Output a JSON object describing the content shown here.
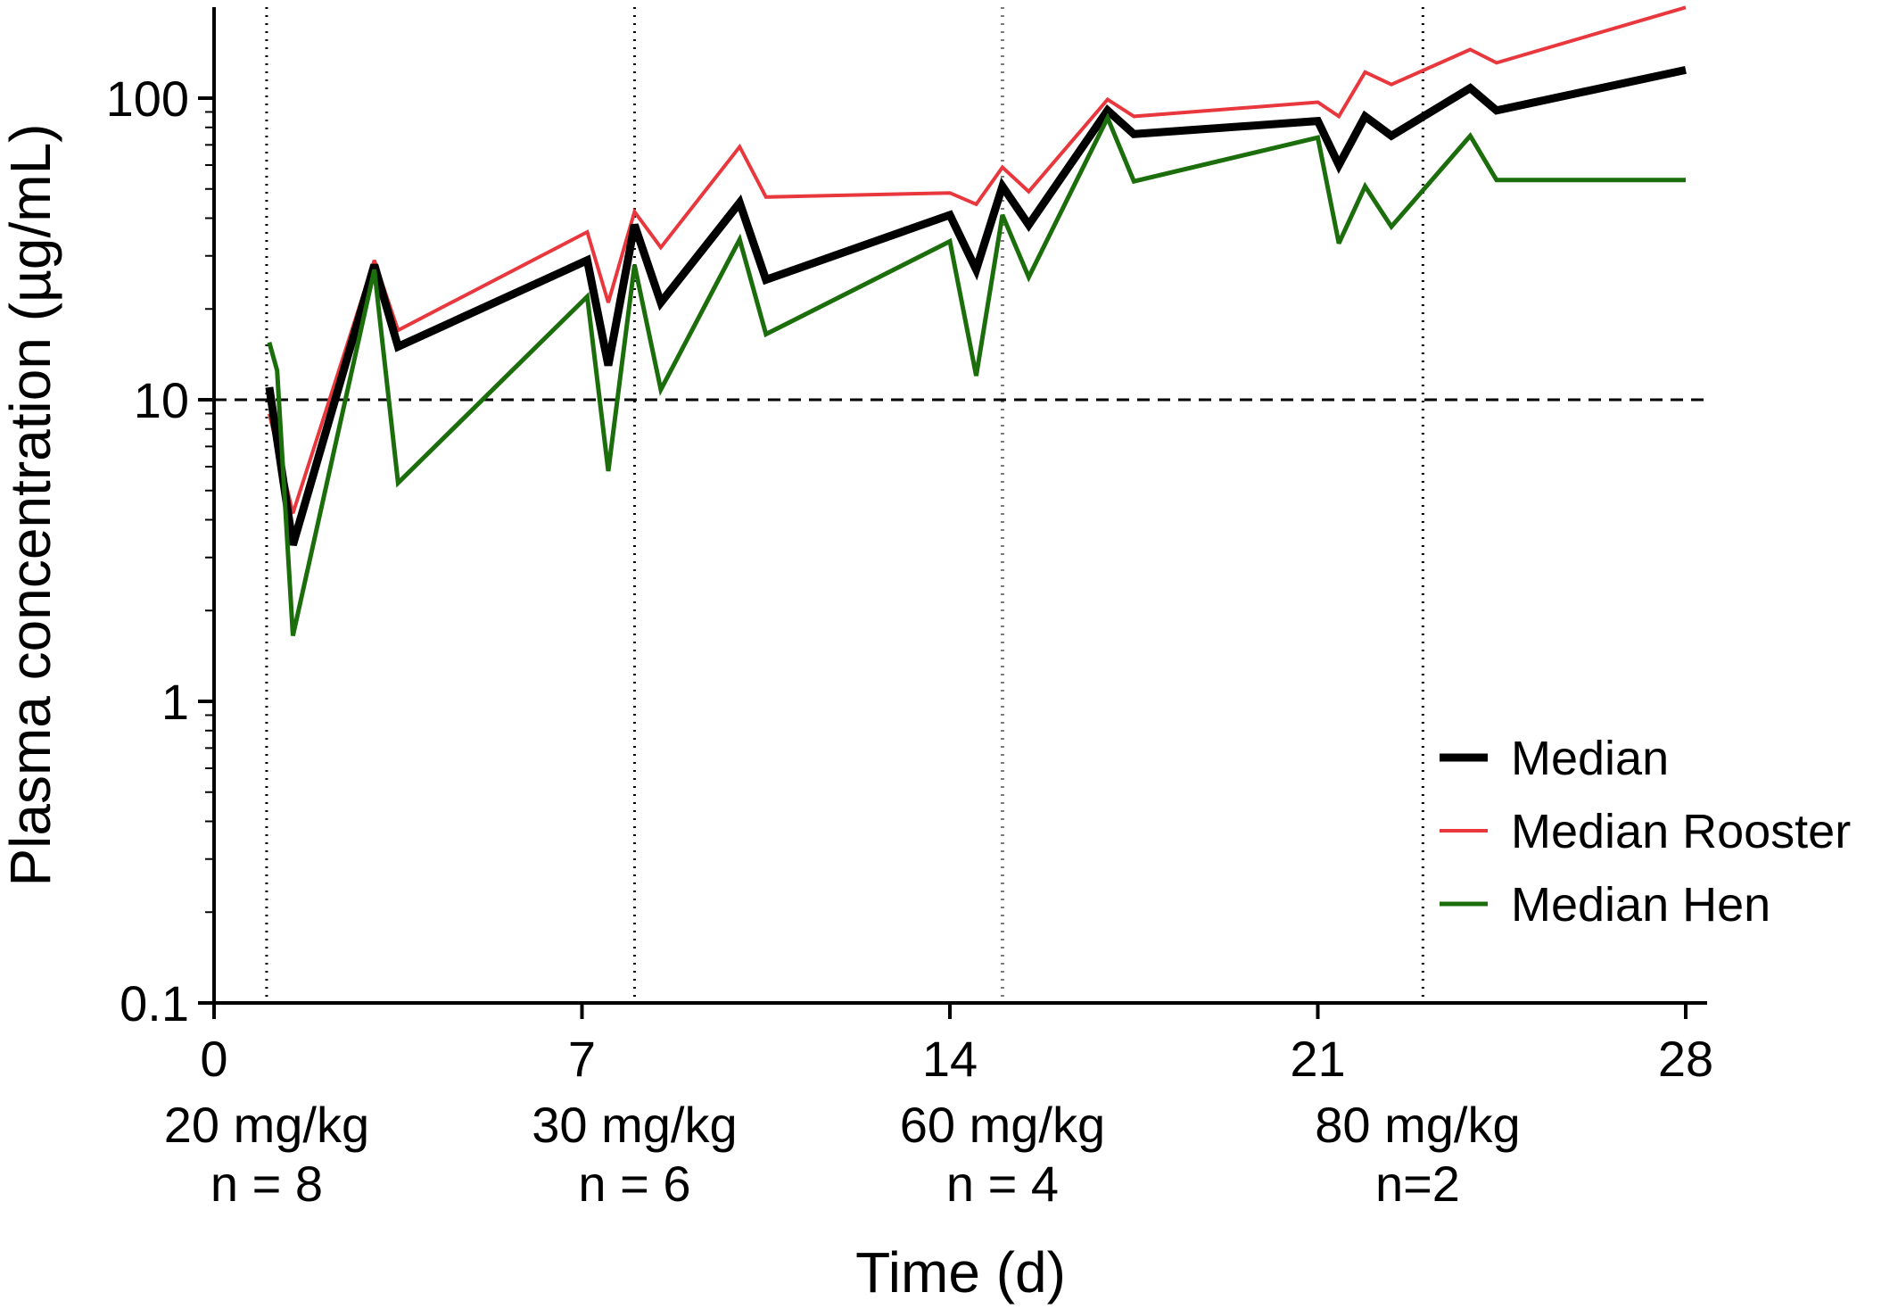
{
  "chart_data": {
    "type": "line",
    "title": "",
    "xlabel": "Time (d)",
    "ylabel": "Plasma concentration (µg/mL)",
    "xlim": [
      0,
      28
    ],
    "ylim": [
      0.1,
      200
    ],
    "yscale": "log",
    "x_ticks": [
      0,
      7,
      14,
      21,
      28
    ],
    "y_ticks": [
      {
        "value": 0.1,
        "label": "0.1"
      },
      {
        "value": 1,
        "label": "1"
      },
      {
        "value": 10,
        "label": "10"
      },
      {
        "value": 100,
        "label": "100"
      }
    ],
    "grid": false,
    "legend_position": "lower-right",
    "reference_line": {
      "y": 10,
      "style": "dashed"
    },
    "dose_markers": [
      1,
      8,
      15,
      23
    ],
    "dose_groups": [
      {
        "x": 1,
        "dose": "20 mg/kg",
        "n": "n = 8"
      },
      {
        "x": 8,
        "dose": "30 mg/kg",
        "n": "n = 6"
      },
      {
        "x": 15,
        "dose": "60 mg/kg",
        "n": "n = 4"
      },
      {
        "x": 22.9,
        "dose": "80 mg/kg",
        "n": "n=2"
      }
    ],
    "series": [
      {
        "name": "Median Rooster",
        "color": "#e8383d",
        "width": 4,
        "x": [
          1.05,
          1.5,
          3.05,
          3.5,
          7.1,
          7.5,
          8.0,
          8.5,
          10.0,
          10.5,
          14.0,
          14.5,
          15.0,
          15.5,
          17.0,
          17.5,
          21.0,
          21.4,
          21.9,
          22.4,
          23.9,
          24.4,
          28.0
        ],
        "y": [
          9.0,
          4.2,
          29.0,
          17.0,
          36.0,
          21.0,
          42.0,
          32.0,
          69.0,
          47.0,
          48.5,
          44.5,
          59.0,
          49.0,
          99.0,
          87.0,
          97.0,
          87.0,
          122.0,
          111.0,
          145.0,
          131.0,
          200.0
        ]
      },
      {
        "name": "Median",
        "color": "#000000",
        "width": 9,
        "x": [
          1.05,
          1.5,
          3.05,
          3.5,
          7.1,
          7.5,
          8.0,
          8.5,
          10.0,
          10.5,
          14.0,
          14.5,
          15.0,
          15.5,
          17.0,
          17.5,
          21.0,
          21.4,
          21.9,
          22.4,
          23.9,
          24.4,
          28.0
        ],
        "y": [
          11.0,
          3.3,
          28.0,
          15.0,
          29.0,
          13.0,
          38.0,
          21.0,
          45.0,
          25.0,
          41.0,
          27.0,
          51.0,
          38.0,
          91.0,
          76.0,
          84.0,
          60.0,
          87.0,
          75.0,
          108.0,
          91.0,
          124.0
        ]
      },
      {
        "name": "Median Hen",
        "color": "#1b6e0b",
        "width": 5,
        "x": [
          1.05,
          1.2,
          1.5,
          3.05,
          3.5,
          7.1,
          7.5,
          8.0,
          8.5,
          10.0,
          10.5,
          14.0,
          14.5,
          15.0,
          15.5,
          17.0,
          17.5,
          21.0,
          21.4,
          21.9,
          22.4,
          23.9,
          24.4,
          28.0
        ],
        "y": [
          15.5,
          12.5,
          1.65,
          27.0,
          5.3,
          22.0,
          5.8,
          28.0,
          10.8,
          34.0,
          16.5,
          33.5,
          12.0,
          41.0,
          25.5,
          86.0,
          53.0,
          74.0,
          33.0,
          51.0,
          37.5,
          75.0,
          53.5,
          53.5
        ]
      }
    ]
  }
}
